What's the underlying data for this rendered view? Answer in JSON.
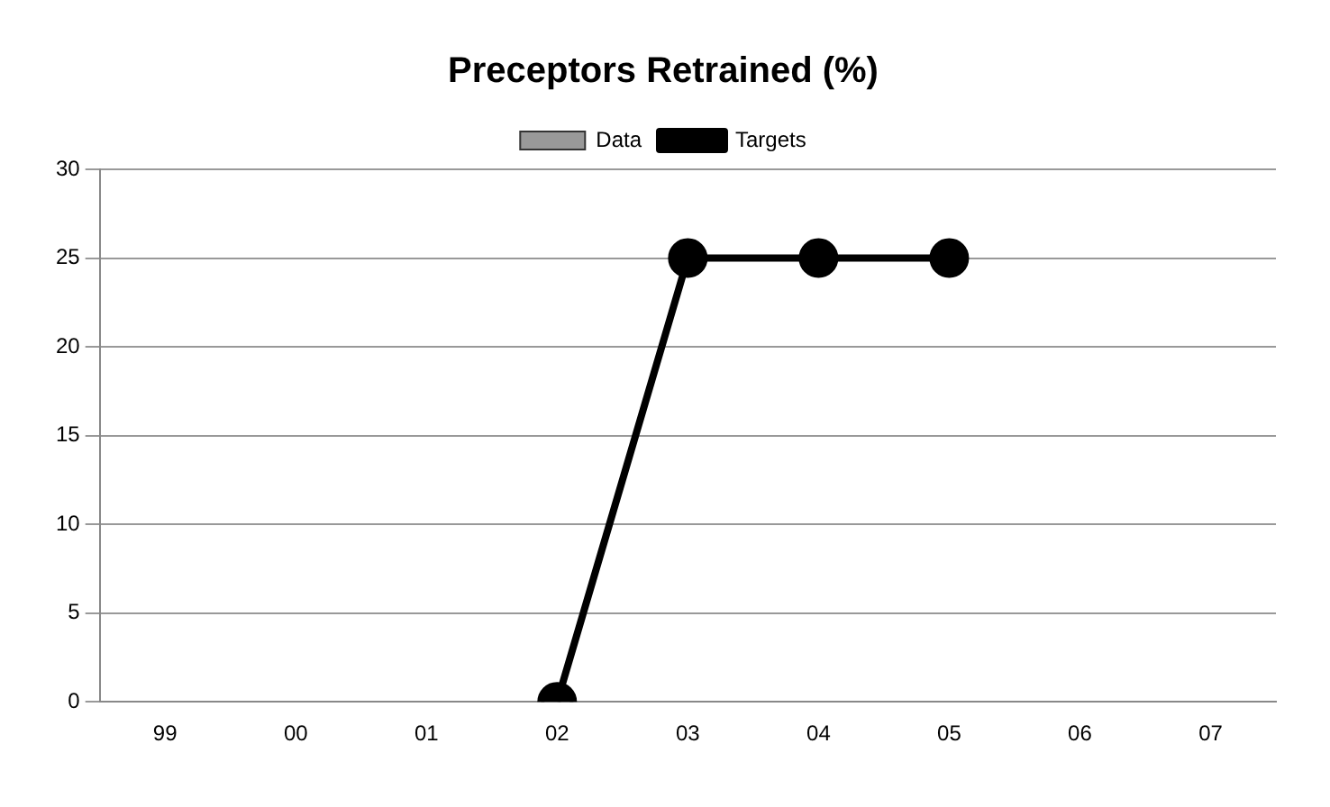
{
  "chart_data": {
    "type": "bar",
    "title": "Preceptors Retrained (%)",
    "categories": [
      "99",
      "00",
      "01",
      "02",
      "03",
      "04",
      "05",
      "06",
      "07"
    ],
    "series": [
      {
        "name": "Data",
        "type": "bar",
        "color": "#999999",
        "values": [
          null,
          null,
          null,
          null,
          null,
          null,
          null,
          null,
          null
        ]
      },
      {
        "name": "Targets",
        "type": "line",
        "color": "#000000",
        "values": [
          null,
          null,
          null,
          0,
          25,
          25,
          25,
          null,
          null
        ],
        "marker": "circle"
      }
    ],
    "ylim": [
      0,
      30
    ],
    "yticks": [
      0,
      5,
      10,
      15,
      20,
      25,
      30
    ],
    "grid": "y",
    "legend": "top"
  }
}
